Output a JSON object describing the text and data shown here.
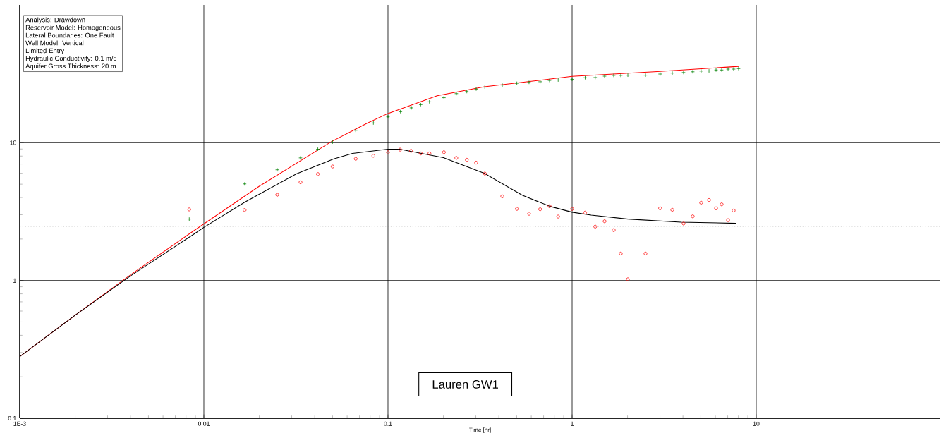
{
  "chart_data": {
    "type": "scatter",
    "title": "Lauren GW1",
    "xlabel": "Time [hr]",
    "annotations": [
      "Analysis: Drawdown",
      "Reservoir Model: Homogeneous",
      "Lateral Boundaries:  One Fault",
      "Well Model:  Vertical",
      "Limited-Entry",
      "Hydraulic Conductivity:  0.1 m/d",
      "Aquifer Gross Thickness:  20 m"
    ],
    "log": "xy",
    "grid": true,
    "xlim": [
      0.001,
      100
    ],
    "ylim": [
      0.1,
      100
    ],
    "xticks": [
      {
        "value": 0.001,
        "label": "1E-3"
      },
      0.01,
      0.1,
      1,
      10
    ],
    "yticks": [
      0.1,
      1,
      10
    ],
    "ref_lines": [
      {
        "axis": "y",
        "value": 2.48,
        "color": "#808080",
        "line_style": "dotted"
      }
    ],
    "series": [
      {
        "marker": "cross",
        "color": "#008000",
        "x": [
          0.00833,
          0.01665,
          0.02503,
          0.0335,
          0.0416,
          0.05,
          0.0668,
          0.0833,
          0.1,
          0.1169,
          0.134,
          0.1505,
          0.1679,
          0.2013,
          0.2352,
          0.268,
          0.3013,
          0.3357,
          0.4175,
          0.501,
          0.5836,
          0.6705,
          0.754,
          0.84,
          1.0,
          1.177,
          1.335,
          1.501,
          1.683,
          1.838,
          2.008,
          2.503,
          3.005,
          3.5,
          4.03,
          4.52,
          5.02,
          5.54,
          6.05,
          6.49,
          7.03,
          7.54,
          8.02
        ],
        "values": [
          2.79,
          5.02,
          6.36,
          7.76,
          8.97,
          10.1,
          12.3,
          13.9,
          15.4,
          16.8,
          17.9,
          18.9,
          19.8,
          21.2,
          22.7,
          23.5,
          24.5,
          25.3,
          26.2,
          27.0,
          27.4,
          27.7,
          28.3,
          28.5,
          28.8,
          29.6,
          29.7,
          30.4,
          30.8,
          30.8,
          30.9,
          30.9,
          31.5,
          32.0,
          32.3,
          32.7,
          33.1,
          33.2,
          33.7,
          33.7,
          34.2,
          34.2,
          34.5
        ]
      },
      {
        "marker": "circle",
        "color": "#ff0000",
        "x": [
          0.00833,
          0.01665,
          0.02503,
          0.0335,
          0.0416,
          0.05,
          0.0668,
          0.0833,
          0.1,
          0.1165,
          0.1334,
          0.1505,
          0.1679,
          0.2013,
          0.235,
          0.268,
          0.301,
          0.3357,
          0.4175,
          0.501,
          0.5836,
          0.6705,
          0.754,
          0.84,
          1.0,
          1.177,
          1.335,
          1.501,
          1.683,
          1.838,
          2.008,
          2.503,
          3.005,
          3.5,
          4.03,
          4.52,
          5.02,
          5.54,
          6.05,
          6.49,
          7.03,
          7.54
        ],
        "values": [
          3.28,
          3.25,
          4.19,
          5.16,
          5.92,
          6.72,
          7.64,
          8.04,
          8.51,
          8.91,
          8.73,
          8.36,
          8.36,
          8.53,
          7.76,
          7.52,
          7.17,
          5.97,
          4.08,
          3.31,
          3.05,
          3.29,
          3.46,
          2.91,
          3.31,
          3.11,
          2.46,
          2.69,
          2.32,
          1.57,
          1.02,
          1.57,
          3.34,
          3.26,
          2.59,
          2.92,
          3.67,
          3.84,
          3.34,
          3.57,
          2.74,
          3.22
        ]
      },
      {
        "type": "line",
        "marker": "none",
        "color": "#ff0000",
        "x": [
          0.001,
          0.002,
          0.004,
          0.0085,
          0.02,
          0.0494,
          0.0766,
          0.1,
          0.185,
          0.334,
          0.6,
          1.0,
          2.9,
          8.02
        ],
        "values": [
          0.28,
          0.56,
          1.1,
          2.22,
          4.83,
          10.2,
          13.8,
          16.3,
          21.9,
          25.5,
          27.9,
          30.3,
          32.8,
          35.8
        ]
      },
      {
        "type": "line",
        "marker": "none",
        "color": "#000000",
        "x": [
          0.001,
          0.002,
          0.004,
          0.00897,
          0.01,
          0.01665,
          0.0318,
          0.0508,
          0.0642,
          0.1,
          0.1155,
          0.2,
          0.334,
          0.536,
          0.754,
          1.0,
          1.27,
          2.01,
          3.9,
          7.8
        ],
        "values": [
          0.28,
          0.56,
          1.08,
          2.2,
          2.43,
          3.7,
          5.94,
          7.64,
          8.36,
          8.97,
          8.97,
          7.79,
          5.99,
          4.16,
          3.46,
          3.13,
          2.98,
          2.79,
          2.65,
          2.6
        ]
      }
    ]
  }
}
